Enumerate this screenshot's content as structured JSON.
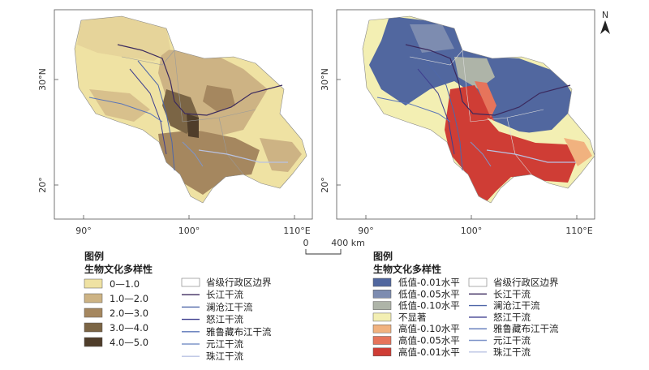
{
  "colors": {
    "div0": "#efe2a3",
    "div1": "#cdb384",
    "div2": "#a5875f",
    "div3": "#7b6545",
    "div4": "#4f3d2a",
    "lowp01": "#51679f",
    "lowp05": "#7d8cb0",
    "lowp10": "#aeb4a8",
    "ns": "#f3efb3",
    "hip10": "#f1b27f",
    "hip05": "#e6745b",
    "hip01": "#cf3d35",
    "boundary": "#9a9a9a",
    "frame": "#555555"
  },
  "map_left": {
    "ticks_x": [
      "90°",
      "100°",
      "110°E"
    ],
    "ticks_y": [
      "30°N",
      "20°"
    ]
  },
  "map_right": {
    "ticks_x": [
      "90°",
      "100°",
      "110°E"
    ],
    "ticks_y": [
      "30°N",
      "20°"
    ],
    "north_label": "N"
  },
  "scale": {
    "start": "0",
    "end": "400 km"
  },
  "legend_left": {
    "title": "图例",
    "subtitle": "生物文化多样性",
    "classes": [
      {
        "label": "0—1.0",
        "color": "#efe2a3"
      },
      {
        "label": "1.0—2.0",
        "color": "#cdb384"
      },
      {
        "label": "2.0—3.0",
        "color": "#a5875f"
      },
      {
        "label": "3.0—4.0",
        "color": "#7b6545"
      },
      {
        "label": "4.0—5.0",
        "color": "#4f3d2a"
      }
    ]
  },
  "legend_right": {
    "title": "图例",
    "subtitle": "生物文化多样性",
    "classes": [
      {
        "label": "低值-0.01水平",
        "color": "#51679f"
      },
      {
        "label": "低值-0.05水平",
        "color": "#7d8cb0"
      },
      {
        "label": "低值-0.10水平",
        "color": "#aeb4a8"
      },
      {
        "label": "不显著",
        "color": "#f3efb3"
      },
      {
        "label": "高值-0.10水平",
        "color": "#f1b27f"
      },
      {
        "label": "高值-0.05水平",
        "color": "#e6745b"
      },
      {
        "label": "高值-0.01水平",
        "color": "#cf3d35"
      }
    ]
  },
  "layers": {
    "boundary_label": "省级行政区边界",
    "rivers": [
      {
        "label": "长江干流",
        "color": "#3b2a5e"
      },
      {
        "label": "澜沧江干流",
        "color": "#4f67a8"
      },
      {
        "label": "怒江干流",
        "color": "#3f3f8f"
      },
      {
        "label": "雅鲁藏布江干流",
        "color": "#5c76b8"
      },
      {
        "label": "元江干流",
        "color": "#7f95c9"
      },
      {
        "label": "珠江干流",
        "color": "#b9c3e3"
      }
    ]
  }
}
